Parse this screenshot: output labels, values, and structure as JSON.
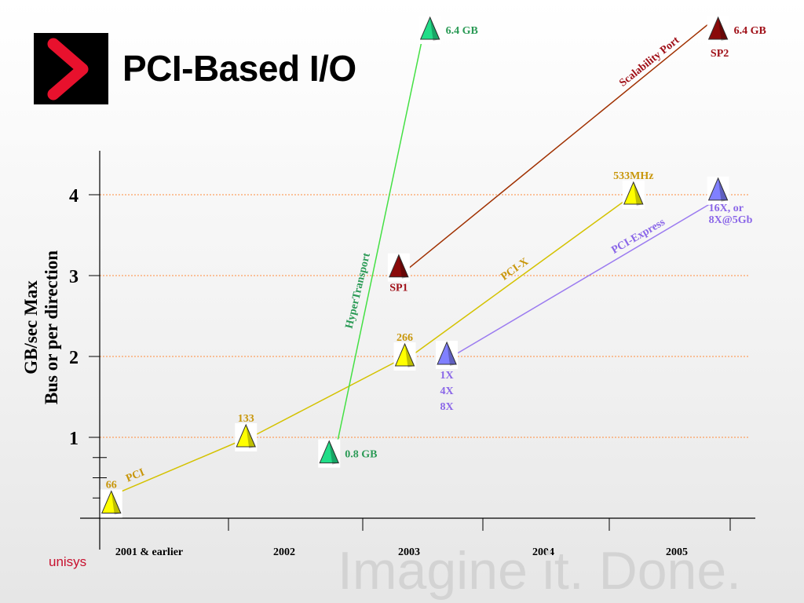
{
  "slide": {
    "title": "PCI-Based I/O",
    "brand": "unisys",
    "tagline": "Imagine it.  Done."
  },
  "colors": {
    "pci": "#d4c200",
    "pci_label": "#c8960a",
    "pcie": "#9b7bf0",
    "pcie_label": "#8a66e8",
    "hypertransport": "#44e044",
    "hypertransport_label": "#2a9a55",
    "scalability": "#a03000",
    "scalability_label": "#a01018",
    "gridline": "#ff8c3c",
    "logo_chevron": "#e8112d"
  },
  "chart_data": {
    "type": "line",
    "ylabel_lines": [
      "GB/sec Max",
      "Bus or per direction"
    ],
    "yticks": [
      {
        "v": 1,
        "label": "1"
      },
      {
        "v": 2,
        "label": "2"
      },
      {
        "v": 3,
        "label": "3"
      },
      {
        "v": 4,
        "label": "4"
      }
    ],
    "ylim": [
      0,
      4.7
    ],
    "xlim": [
      0,
      5
    ],
    "grid": true,
    "categories": [
      "2001 & earlier",
      "2002",
      "2003",
      "2004",
      "2005"
    ],
    "series": [
      {
        "key": "pci",
        "name": "PCI",
        "tri": "#ffff00",
        "line_key": "pci",
        "label_key": "pci_label",
        "segments": [
          {
            "from": 0.09,
            "to": 1.13,
            "y0": 0.3,
            "y1": 1.0,
            "label": "PCI",
            "t": 0.2,
            "above": true
          },
          {
            "from": 1.13,
            "to": 2.35,
            "y0": 1.0,
            "y1": 2.0,
            "label": "",
            "t": 0.5,
            "above": true
          },
          {
            "from": 2.35,
            "to": 4.2,
            "y0": 2.0,
            "y1": 4.0,
            "label": "PCI-X",
            "t": 0.5,
            "above": true
          }
        ],
        "points": [
          {
            "x": 0.09,
            "y": 0.18,
            "label": "66",
            "pos": "above"
          },
          {
            "x": 1.13,
            "y": 1.0,
            "label": "133",
            "pos": "above"
          },
          {
            "x": 2.35,
            "y": 2.0,
            "label": "266",
            "pos": "above"
          },
          {
            "x": 4.2,
            "y": 4.0,
            "label": "533MHz",
            "pos": "above"
          }
        ]
      },
      {
        "key": "pcie",
        "name": "PCI-Express",
        "tri": "#8080ff",
        "line_key": "pcie",
        "label_key": "pcie_label",
        "segments": [
          {
            "from": 2.7,
            "to": 4.9,
            "y0": 2.0,
            "y1": 3.95,
            "label": "PCI-Express",
            "t": 0.72,
            "above": true
          }
        ],
        "points": [
          {
            "x": 2.7,
            "y": 2.02,
            "label": "1X\n4X\n8X",
            "pos": "below"
          },
          {
            "x": 4.9,
            "y": 4.05,
            "label": "16X, or\n8X@5Gb",
            "pos": "below"
          }
        ]
      },
      {
        "key": "ht",
        "name": "HyperTransport",
        "tri": "#22dd88",
        "line_key": "hypertransport",
        "label_key": "hypertransport_label",
        "segments": [
          {
            "from": 1.75,
            "to": 2.56,
            "y0": 0.9,
            "y1": 6.15,
            "label": "HyperTransport",
            "t": 0.36,
            "above": true
          }
        ],
        "points": [
          {
            "x": 1.75,
            "y": 0.8,
            "label": "0.8 GB",
            "pos": "right"
          },
          {
            "x": 2.56,
            "y": 6.2,
            "label": "6.4 GB",
            "pos": "right"
          }
        ]
      },
      {
        "key": "sp",
        "name": "Scalability Port",
        "tri": "#8a0a0a",
        "line_key": "scalability",
        "label_key": "scalability_label",
        "segments": [
          {
            "from": 2.3,
            "to": 4.9,
            "y0": 3.05,
            "y1": 6.2,
            "label": "Scalability Port",
            "t": 0.8,
            "above": true
          }
        ],
        "points": [
          {
            "x": 2.3,
            "y": 3.1,
            "label": "SP1",
            "pos": "below"
          },
          {
            "x": 4.9,
            "y": 6.2,
            "label": "6.4 GB",
            "pos": "right",
            "sublabel": "SP2"
          }
        ]
      }
    ]
  }
}
